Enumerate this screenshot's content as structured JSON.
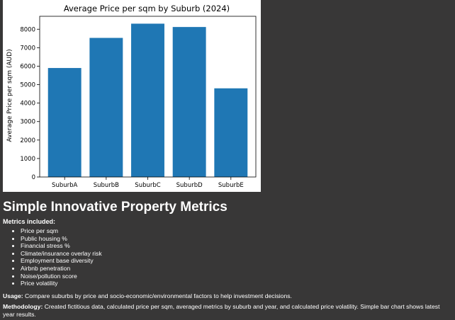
{
  "chart_data": {
    "type": "bar",
    "title": "Average Price per sqm by Suburb (2024)",
    "xlabel": "",
    "ylabel": "Average Price per sqm (AUD)",
    "categories": [
      "SuburbA",
      "SuburbB",
      "SuburbC",
      "SuburbD",
      "SuburbE"
    ],
    "values": [
      5900,
      7530,
      8300,
      8120,
      4800
    ],
    "ylim": [
      0,
      8700
    ],
    "yticks": [
      0,
      1000,
      2000,
      3000,
      4000,
      5000,
      6000,
      7000,
      8000
    ],
    "bar_color": "#1f77b4",
    "grid": false,
    "legend": "none"
  },
  "page": {
    "title": "Simple Innovative Property Metrics",
    "metrics_heading": "Metrics included:",
    "metrics": [
      "Price per sqm",
      "Public housing %",
      "Financial stress %",
      "Climate/insurance overlay risk",
      "Employment base diversity",
      "Airbnb penetration",
      "Noise/pollution score",
      "Price volatility"
    ],
    "usage_label": "Usage:",
    "usage_text": " Compare suburbs by price and socio-economic/environmental factors to help investment decisions.",
    "methodology_label": "Methodology:",
    "methodology_text": " Created fictitious data, calculated price per sqm, averaged metrics by suburb and year, and calculated price volatility. Simple bar chart shows latest year results."
  },
  "colors": {
    "background": "#383737",
    "text": "#ffffff",
    "bar": "#1f77b4"
  }
}
